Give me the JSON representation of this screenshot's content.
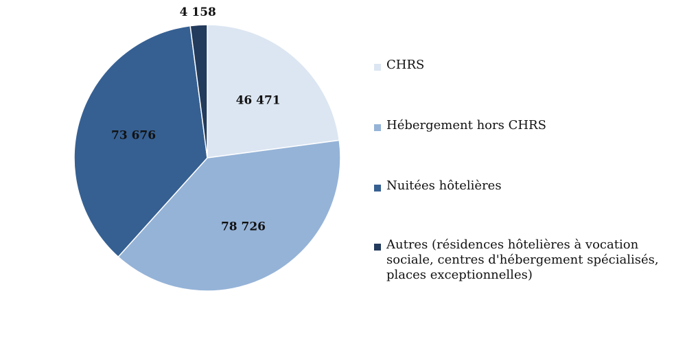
{
  "chart_data": {
    "type": "pie",
    "slices": [
      {
        "label": "CHRS",
        "value": 46471,
        "value_label": "46 471",
        "color": "#dce6f2"
      },
      {
        "label": "Hébergement hors CHRS",
        "value": 78726,
        "value_label": "78 726",
        "color": "#95b3d7"
      },
      {
        "label": "Nuitées hôtelières",
        "value": 73676,
        "value_label": "73 676",
        "color": "#366092"
      },
      {
        "label": "Autres (résidences hôtelières à vocation sociale, centres d'hébergement spécialisés, places exceptionnelles)",
        "value": 4158,
        "value_label": "4 158",
        "color": "#233b5c"
      }
    ],
    "start_angle": "12 o'clock",
    "direction": "clockwise",
    "legend_position": "right"
  }
}
